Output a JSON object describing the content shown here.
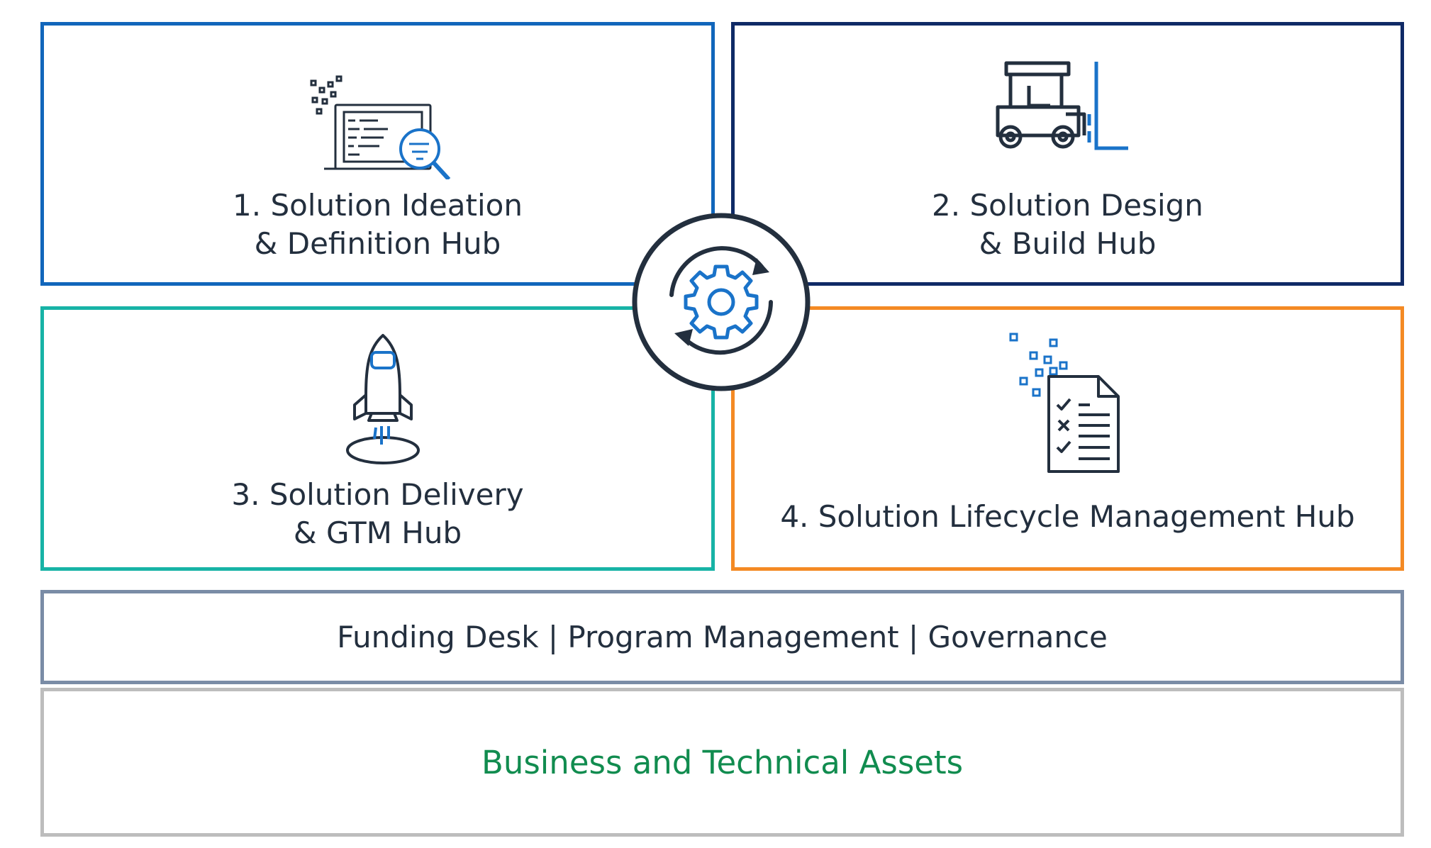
{
  "hubs": [
    {
      "line1": "1. Solution Ideation",
      "line2": "& Definition Hub",
      "icon": "laptop-search-icon",
      "color": "#1166bb"
    },
    {
      "line1": "2. Solution Design",
      "line2": "& Build Hub",
      "icon": "forklift-icon",
      "color": "#0f2a66"
    },
    {
      "line1": "3. Solution Delivery",
      "line2": "& GTM Hub",
      "icon": "rocket-icon",
      "color": "#17b3a6"
    },
    {
      "line1": "4. Solution Lifecycle Management Hub",
      "line2": "",
      "icon": "checklist-document-icon",
      "color": "#f48a24"
    }
  ],
  "center": {
    "icon": "gear-cycle-icon"
  },
  "strip": {
    "text": "Funding Desk | Program Management | Governance",
    "color": "#7a8ca6"
  },
  "assets": {
    "text": "Business and Technical Assets",
    "color": "#118c4f"
  }
}
